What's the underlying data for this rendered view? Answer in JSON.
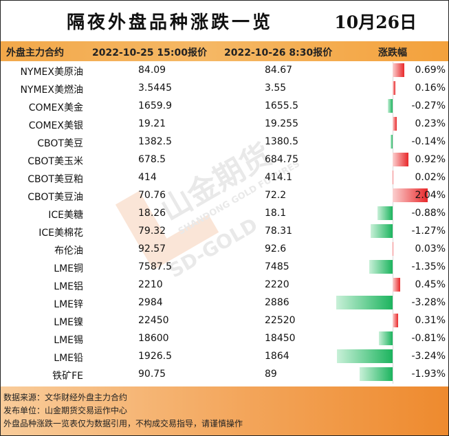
{
  "title": "隔夜外盘品种涨跌一览",
  "date": "10月26日",
  "header": {
    "col_name": "外盘主力合约",
    "col_prev": "2022-10-25 15:00报价",
    "col_curr": "2022-10-26 8:30报价",
    "col_change": "涨跌幅"
  },
  "rows": [
    {
      "name": "NYMEX美原油",
      "prev": "84.09",
      "curr": "84.67",
      "pct": "0.69%"
    },
    {
      "name": "NYMEX美燃油",
      "prev": "3.5445",
      "curr": "3.55",
      "pct": "0.16%"
    },
    {
      "name": "COMEX美金",
      "prev": "1659.9",
      "curr": "1655.5",
      "pct": "-0.27%"
    },
    {
      "name": "COMEX美银",
      "prev": "19.21",
      "curr": "19.255",
      "pct": "0.23%"
    },
    {
      "name": "CBOT美豆",
      "prev": "1382.5",
      "curr": "1380.5",
      "pct": "-0.14%"
    },
    {
      "name": "CBOT美玉米",
      "prev": "678.5",
      "curr": "684.75",
      "pct": "0.92%"
    },
    {
      "name": "CBOT美豆粕",
      "prev": "414",
      "curr": "414.1",
      "pct": "0.02%"
    },
    {
      "name": "CBOT美豆油",
      "prev": "70.76",
      "curr": "72.2",
      "pct": "2.04%"
    },
    {
      "name": "ICE美糖",
      "prev": "18.26",
      "curr": "18.1",
      "pct": "-0.88%"
    },
    {
      "name": "ICE美棉花",
      "prev": "79.32",
      "curr": "78.31",
      "pct": "-1.27%"
    },
    {
      "name": "布伦油",
      "prev": "92.57",
      "curr": "92.6",
      "pct": "0.03%"
    },
    {
      "name": "LME铜",
      "prev": "7587.5",
      "curr": "7485",
      "pct": "-1.35%"
    },
    {
      "name": "LME铝",
      "prev": "2210",
      "curr": "2220",
      "pct": "0.45%"
    },
    {
      "name": "LME锌",
      "prev": "2984",
      "curr": "2886",
      "pct": "-3.28%"
    },
    {
      "name": "LME镍",
      "prev": "22450",
      "curr": "22520",
      "pct": "0.31%"
    },
    {
      "name": "LME锡",
      "prev": "18600",
      "curr": "18450",
      "pct": "-0.81%"
    },
    {
      "name": "LME铅",
      "prev": "1926.5",
      "curr": "1864",
      "pct": "-3.24%"
    },
    {
      "name": "铁矿FE",
      "prev": "90.75",
      "curr": "89",
      "pct": "-1.93%"
    }
  ],
  "change_values": [
    0.69,
    0.16,
    -0.27,
    0.23,
    -0.14,
    0.92,
    0.02,
    2.04,
    -0.88,
    -1.27,
    0.03,
    -1.35,
    0.45,
    -3.28,
    0.31,
    -0.81,
    -3.24,
    -1.93
  ],
  "colors": {
    "up": "#e8282a",
    "down": "#1cb45e",
    "header": "#f3a13c"
  },
  "watermark": {
    "brand_cn": "山金期货",
    "brand_en": "SHANDONG GOLD FUTURES",
    "brand_short": "SD-GOLD"
  },
  "footer": {
    "line1": "数据来源：文华财经外盘主力合约",
    "line2": "发布单位：山金期货交易运作中心",
    "line3": "外盘品种涨跌一览表仅为数据引用，不构成交易指导，请谨慎操作"
  }
}
